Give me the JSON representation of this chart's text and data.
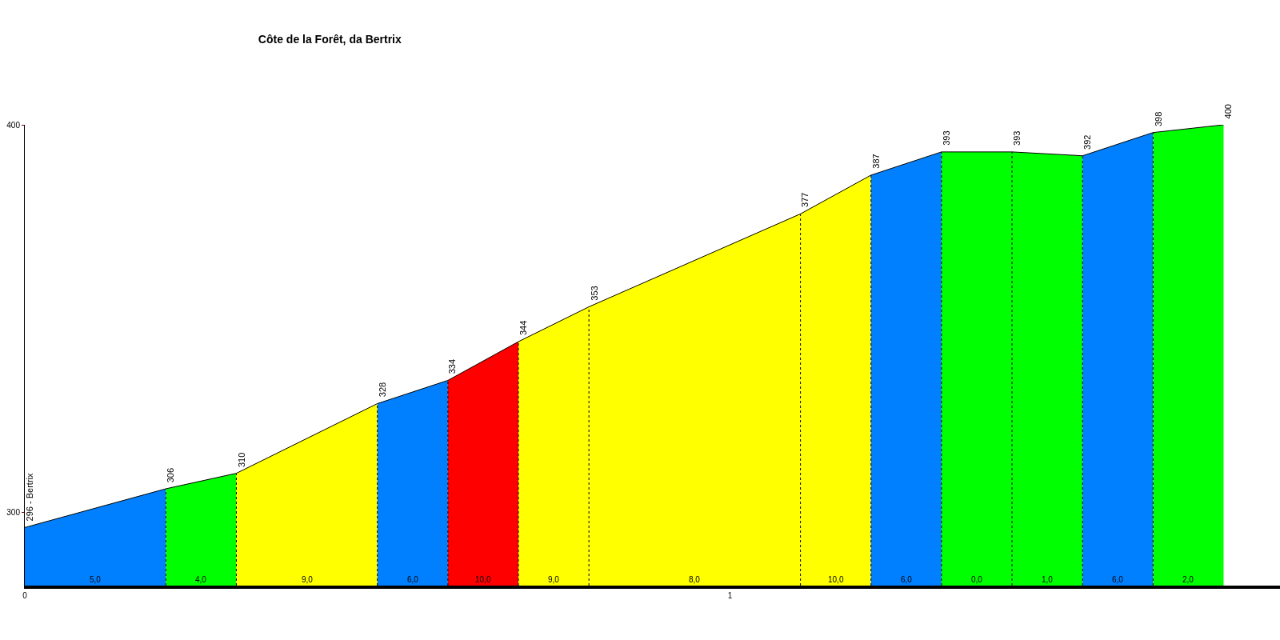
{
  "chart_data": {
    "type": "area",
    "title": "Côte de la Forêt, da Bertrix",
    "series": [
      {
        "color": "#0080ff",
        "x": [
          0,
          0.2
        ],
        "values": [
          296,
          306
        ]
      },
      {
        "color": "#00ff00",
        "x": [
          0.2,
          0.3
        ],
        "values": [
          306,
          310
        ]
      },
      {
        "color": "#ffff00",
        "x": [
          0.3,
          0.5
        ],
        "values": [
          310,
          328
        ]
      },
      {
        "color": "#0080ff",
        "x": [
          0.5,
          0.6
        ],
        "values": [
          328,
          334
        ]
      },
      {
        "color": "#ff0000",
        "x": [
          0.6,
          0.7
        ],
        "values": [
          334,
          344
        ]
      },
      {
        "color": "#ffff00",
        "x": [
          0.7,
          0.8
        ],
        "values": [
          344,
          353
        ]
      },
      {
        "color": "#ffff00",
        "x": [
          0.8,
          1.1
        ],
        "values": [
          353,
          377
        ]
      },
      {
        "color": "#ffff00",
        "x": [
          1.1,
          1.2
        ],
        "values": [
          377,
          387
        ]
      },
      {
        "color": "#0080ff",
        "x": [
          1.2,
          1.3
        ],
        "values": [
          387,
          393
        ]
      },
      {
        "color": "#00ff00",
        "x": [
          1.3,
          1.4
        ],
        "values": [
          393,
          393
        ]
      },
      {
        "color": "#00ff00",
        "x": [
          1.4,
          1.5
        ],
        "values": [
          393,
          392
        ]
      },
      {
        "color": "#0080ff",
        "x": [
          1.5,
          1.6
        ],
        "values": [
          392,
          398
        ]
      },
      {
        "color": "#00ff00",
        "x": [
          1.6,
          1.7
        ],
        "values": [
          398,
          400
        ]
      }
    ],
    "annotations": [
      {
        "text": "296 - Bertrix",
        "x": 0,
        "y": 296
      },
      {
        "text": "306",
        "x": 0.2,
        "y": 306
      },
      {
        "text": "310",
        "x": 0.3,
        "y": 310
      },
      {
        "text": "328",
        "x": 0.5,
        "y": 328
      },
      {
        "text": "334",
        "x": 0.6,
        "y": 334
      },
      {
        "text": "344",
        "x": 0.7,
        "y": 344
      },
      {
        "text": "353",
        "x": 0.8,
        "y": 353
      },
      {
        "text": "377",
        "x": 1.1,
        "y": 377
      },
      {
        "text": "387",
        "x": 1.2,
        "y": 387
      },
      {
        "text": "393",
        "x": 1.3,
        "y": 393
      },
      {
        "text": "393",
        "x": 1.4,
        "y": 393
      },
      {
        "text": "392",
        "x": 1.5,
        "y": 392
      },
      {
        "text": "398",
        "x": 1.6,
        "y": 398
      },
      {
        "text": "400",
        "x": 1.7,
        "y": 400
      },
      "5,0",
      "4,0",
      "9,0",
      "6,0",
      "10,0",
      "9,0",
      "8,0",
      "10,0",
      "6,0",
      "0,0",
      "1,0",
      "6,0",
      "2,0"
    ],
    "xlim": [
      0,
      1.78
    ],
    "xticks": [
      0,
      1
    ],
    "ylim": [
      281,
      400
    ],
    "yticks": [
      300,
      400
    ],
    "grid": false,
    "line_style": "solid",
    "marker": "none"
  }
}
